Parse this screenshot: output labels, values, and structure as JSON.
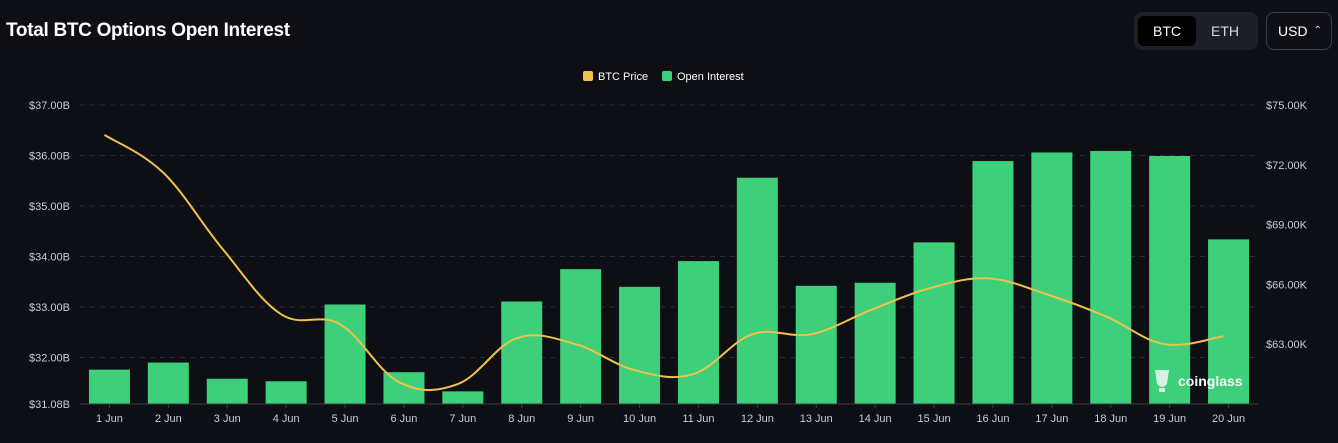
{
  "header": {
    "title": "Total BTC Options Open Interest",
    "coin_options": [
      "BTC",
      "ETH"
    ],
    "selected_coin": "BTC",
    "currency": "USD",
    "currency_icon": "up-down-chevron-icon"
  },
  "watermark": {
    "text": "coinglass",
    "icon": "coinglass-logo-icon"
  },
  "chart_data": {
    "type": "bar",
    "categories": [
      "1 Jun",
      "2 Jun",
      "3 Jun",
      "4 Jun",
      "5 Jun",
      "6 Jun",
      "7 Jun",
      "8 Jun",
      "9 Jun",
      "10 Jun",
      "11 Jun",
      "12 Jun",
      "13 Jun",
      "14 Jun",
      "15 Jun",
      "16 Jun",
      "17 Jun",
      "18 Jun",
      "19 Jun",
      "20 Jun"
    ],
    "series": [
      {
        "name": "Open Interest",
        "type": "bar",
        "axis": "left",
        "color": "#3ecf7a",
        "values": [
          31.76,
          31.9,
          31.58,
          31.53,
          33.05,
          31.71,
          31.33,
          33.11,
          33.75,
          33.4,
          33.91,
          35.56,
          33.42,
          33.48,
          34.28,
          35.89,
          36.06,
          36.09,
          35.99,
          34.34
        ]
      },
      {
        "name": "BTC Price",
        "type": "line",
        "axis": "right",
        "color": "#f0c04c",
        "values": [
          73500,
          71600,
          67800,
          64500,
          64000,
          61100,
          61000,
          63300,
          63000,
          61700,
          61500,
          63500,
          63500,
          64700,
          65800,
          66300,
          65500,
          64400,
          63000,
          63400
        ]
      }
    ],
    "y_left": {
      "min": 31.08,
      "max": 37.0,
      "ticks": [
        "$37.00B",
        "$36.00B",
        "$35.00B",
        "$34.00B",
        "$33.00B",
        "$32.00B",
        "$31.08B"
      ]
    },
    "y_right": {
      "min": 60000,
      "max": 75000,
      "ticks": [
        "$75.00K",
        "$72.00K",
        "$69.00K",
        "$66.00K",
        "$63.00K"
      ]
    },
    "legend": {
      "placement": "top-center",
      "items": [
        {
          "label": "BTC Price",
          "color": "#f0c04c"
        },
        {
          "label": "Open Interest",
          "color": "#3ecf7a"
        }
      ]
    },
    "grid": true
  }
}
